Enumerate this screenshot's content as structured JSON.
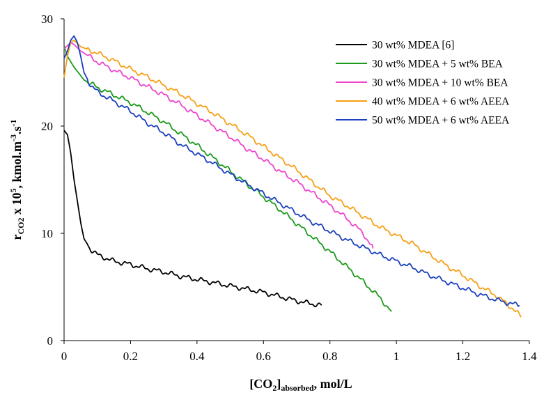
{
  "chart_data": {
    "type": "line",
    "xlabel": {
      "main": "[CO",
      "sub1": "2",
      "mid": "]",
      "sub2": "absorbed",
      "tail": ", mol/L"
    },
    "ylabel": {
      "r": "r",
      "sub": "CO2",
      "x10": " x 10",
      "exp": "5",
      "unit": ", kmol.m",
      "exp2": "-3",
      "dot": ".s",
      "exp3": "-1"
    },
    "xlim": [
      0,
      1.4
    ],
    "ylim": [
      0,
      30
    ],
    "xticks": [
      0,
      0.2,
      0.4,
      0.6,
      0.8,
      1,
      1.2,
      1.4
    ],
    "xtick_labels": [
      "0",
      "0.2",
      "0.4",
      "0.6",
      "0.8",
      "1",
      "1.2",
      "1.4"
    ],
    "yticks": [
      0,
      10,
      20,
      30
    ],
    "ytick_labels": [
      "0",
      "10",
      "20",
      "30"
    ],
    "grid": false,
    "legend_position": "top-right",
    "series": [
      {
        "name": "30 wt% MDEA [6]",
        "color": "#000000",
        "points": [
          [
            0.0,
            19.6
          ],
          [
            0.01,
            19.2
          ],
          [
            0.02,
            17.5
          ],
          [
            0.03,
            15.0
          ],
          [
            0.04,
            13.0
          ],
          [
            0.05,
            11.0
          ],
          [
            0.06,
            9.5
          ],
          [
            0.07,
            9.0
          ],
          [
            0.08,
            8.5
          ],
          [
            0.1,
            8.0
          ],
          [
            0.15,
            7.4
          ],
          [
            0.2,
            7.1
          ],
          [
            0.25,
            6.7
          ],
          [
            0.3,
            6.4
          ],
          [
            0.35,
            6.0
          ],
          [
            0.4,
            5.7
          ],
          [
            0.45,
            5.4
          ],
          [
            0.5,
            5.1
          ],
          [
            0.55,
            4.8
          ],
          [
            0.6,
            4.5
          ],
          [
            0.65,
            4.1
          ],
          [
            0.7,
            3.7
          ],
          [
            0.75,
            3.4
          ],
          [
            0.775,
            3.3
          ]
        ]
      },
      {
        "name": "30 wt% MDEA + 5 wt% BEA",
        "color": "#1a9a1a",
        "points": [
          [
            0.0,
            27.5
          ],
          [
            0.01,
            26.5
          ],
          [
            0.03,
            25.5
          ],
          [
            0.06,
            24.3
          ],
          [
            0.1,
            23.6
          ],
          [
            0.15,
            22.9
          ],
          [
            0.2,
            22.2
          ],
          [
            0.25,
            21.3
          ],
          [
            0.3,
            20.4
          ],
          [
            0.35,
            19.3
          ],
          [
            0.4,
            18.2
          ],
          [
            0.45,
            17.0
          ],
          [
            0.5,
            15.8
          ],
          [
            0.55,
            14.6
          ],
          [
            0.6,
            13.4
          ],
          [
            0.65,
            12.2
          ],
          [
            0.7,
            10.9
          ],
          [
            0.75,
            9.6
          ],
          [
            0.8,
            8.3
          ],
          [
            0.85,
            6.9
          ],
          [
            0.9,
            5.5
          ],
          [
            0.95,
            4.0
          ],
          [
            0.985,
            2.7
          ]
        ]
      },
      {
        "name": "30 wt% MDEA + 10 wt% BEA",
        "color": "#ee44cc",
        "points": [
          [
            0.0,
            27.2
          ],
          [
            0.02,
            27.8
          ],
          [
            0.03,
            27.6
          ],
          [
            0.05,
            27.0
          ],
          [
            0.1,
            26.0
          ],
          [
            0.15,
            25.2
          ],
          [
            0.2,
            24.5
          ],
          [
            0.25,
            23.7
          ],
          [
            0.3,
            22.9
          ],
          [
            0.35,
            22.0
          ],
          [
            0.4,
            21.0
          ],
          [
            0.45,
            20.0
          ],
          [
            0.5,
            19.0
          ],
          [
            0.55,
            17.9
          ],
          [
            0.6,
            16.9
          ],
          [
            0.65,
            15.8
          ],
          [
            0.7,
            14.8
          ],
          [
            0.75,
            13.7
          ],
          [
            0.8,
            12.6
          ],
          [
            0.85,
            11.4
          ],
          [
            0.9,
            10.0
          ],
          [
            0.93,
            8.6
          ]
        ]
      },
      {
        "name": "40 wt% MDEA + 6 wt% AEEA",
        "color": "#f5a015",
        "points": [
          [
            0.0,
            24.5
          ],
          [
            0.01,
            26.5
          ],
          [
            0.02,
            27.8
          ],
          [
            0.03,
            28.0
          ],
          [
            0.05,
            27.4
          ],
          [
            0.1,
            26.8
          ],
          [
            0.15,
            26.1
          ],
          [
            0.2,
            25.3
          ],
          [
            0.25,
            24.6
          ],
          [
            0.3,
            23.8
          ],
          [
            0.35,
            23.0
          ],
          [
            0.4,
            22.1
          ],
          [
            0.45,
            21.2
          ],
          [
            0.5,
            20.2
          ],
          [
            0.55,
            19.2
          ],
          [
            0.6,
            18.1
          ],
          [
            0.65,
            17.0
          ],
          [
            0.7,
            15.9
          ],
          [
            0.75,
            14.7
          ],
          [
            0.8,
            13.5
          ],
          [
            0.85,
            12.6
          ],
          [
            0.9,
            11.6
          ],
          [
            0.95,
            10.6
          ],
          [
            1.0,
            9.8
          ],
          [
            1.05,
            9.0
          ],
          [
            1.1,
            8.0
          ],
          [
            1.15,
            7.0
          ],
          [
            1.2,
            6.1
          ],
          [
            1.25,
            5.1
          ],
          [
            1.3,
            4.2
          ],
          [
            1.35,
            3.0
          ],
          [
            1.375,
            2.2
          ]
        ]
      },
      {
        "name": "50 wt% MDEA + 6 wt% AEEA",
        "color": "#1a3fbf",
        "points": [
          [
            0.0,
            26.3
          ],
          [
            0.01,
            27.0
          ],
          [
            0.02,
            28.0
          ],
          [
            0.03,
            28.4
          ],
          [
            0.04,
            27.8
          ],
          [
            0.05,
            26.5
          ],
          [
            0.06,
            25.0
          ],
          [
            0.08,
            23.8
          ],
          [
            0.1,
            23.2
          ],
          [
            0.15,
            22.3
          ],
          [
            0.2,
            21.4
          ],
          [
            0.25,
            20.3
          ],
          [
            0.3,
            19.4
          ],
          [
            0.35,
            18.3
          ],
          [
            0.4,
            17.4
          ],
          [
            0.45,
            16.5
          ],
          [
            0.5,
            15.5
          ],
          [
            0.55,
            14.6
          ],
          [
            0.6,
            13.7
          ],
          [
            0.65,
            12.8
          ],
          [
            0.7,
            11.9
          ],
          [
            0.75,
            11.0
          ],
          [
            0.8,
            10.2
          ],
          [
            0.85,
            9.4
          ],
          [
            0.9,
            8.7
          ],
          [
            0.95,
            8.0
          ],
          [
            1.0,
            7.4
          ],
          [
            1.05,
            6.8
          ],
          [
            1.1,
            6.1
          ],
          [
            1.15,
            5.5
          ],
          [
            1.2,
            4.9
          ],
          [
            1.25,
            4.3
          ],
          [
            1.3,
            3.8
          ],
          [
            1.35,
            3.4
          ],
          [
            1.37,
            3.3
          ]
        ]
      }
    ]
  }
}
